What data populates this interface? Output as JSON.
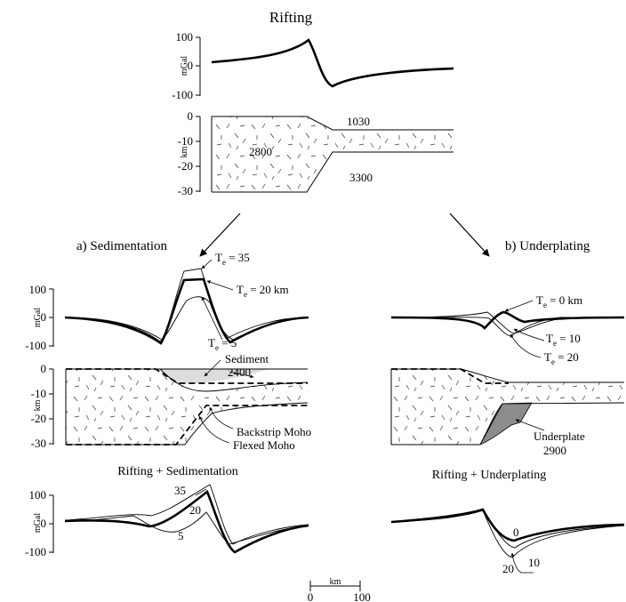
{
  "title": "Rifting",
  "panel_a_title": "a) Sedimentation",
  "panel_b_title": "b) Underplating",
  "bottom_a_title": "Rifting + Sedimentation",
  "bottom_b_title": "Rifting + Underplating",
  "units": {
    "gravity": "mGal",
    "depth": "km"
  },
  "gravity_ticks": [
    "100",
    "0",
    "-100"
  ],
  "depth_ticks": [
    "0",
    "-10",
    "-20",
    "-30"
  ],
  "top": {
    "density_upper": "1030",
    "density_crust": "2800",
    "density_mantle": "3300"
  },
  "sed": {
    "te_35": "35",
    "te_20": "20 km",
    "te_5": "5",
    "sediment": "Sediment",
    "sediment_density": "2400",
    "backstrip_moho": "Backstrip Moho",
    "flexed_moho": "Flexed Moho"
  },
  "und": {
    "te_0": "0 km",
    "te_10": "10",
    "te_20": "20",
    "underplate": "Underplate",
    "underplate_density": "2900"
  },
  "combo_a": {
    "l35": "35",
    "l20": "20",
    "l5": "5"
  },
  "combo_b": {
    "l0": "0",
    "l20": "20",
    "l10": "10"
  },
  "scale": {
    "unit": "km",
    "min": "0",
    "max": "100"
  },
  "te_prefix": "T",
  "te_sub": "e",
  "te_eq": " = "
}
